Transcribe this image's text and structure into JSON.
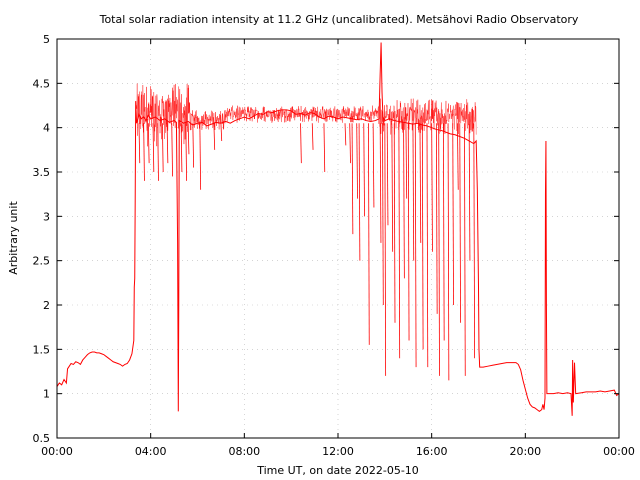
{
  "chart_data": {
    "type": "line",
    "title": "Total solar radiation intensity at 11.2 GHz (uncalibrated). Metsähovi Radio Observatory",
    "xlabel": "Time UT, on date 2022-05-10",
    "ylabel": "Arbitrary unit",
    "xlim": [
      0,
      24
    ],
    "ylim": [
      0.5,
      5
    ],
    "grid": true,
    "x_ticks": [
      0,
      4,
      8,
      12,
      16,
      20,
      24
    ],
    "x_tick_labels": [
      "00:00",
      "04:00",
      "08:00",
      "12:00",
      "16:00",
      "20:00",
      "00:00"
    ],
    "y_ticks": [
      0.5,
      1,
      1.5,
      2,
      2.5,
      3,
      3.5,
      4,
      4.5,
      5
    ],
    "y_tick_labels": [
      "0.5",
      "1",
      "1.5",
      "2",
      "2.5",
      "3",
      "3.5",
      "4",
      "4.5",
      "5"
    ],
    "series": [
      {
        "name": "",
        "color": "#ff0000",
        "points": [
          [
            0.0,
            1.08
          ],
          [
            0.1,
            1.12
          ],
          [
            0.2,
            1.1
          ],
          [
            0.3,
            1.16
          ],
          [
            0.4,
            1.12
          ],
          [
            0.45,
            1.28
          ],
          [
            0.5,
            1.3
          ],
          [
            0.6,
            1.34
          ],
          [
            0.7,
            1.33
          ],
          [
            0.8,
            1.36
          ],
          [
            0.9,
            1.35
          ],
          [
            1.0,
            1.33
          ],
          [
            1.1,
            1.38
          ],
          [
            1.2,
            1.41
          ],
          [
            1.3,
            1.44
          ],
          [
            1.4,
            1.46
          ],
          [
            1.5,
            1.47
          ],
          [
            1.6,
            1.47
          ],
          [
            1.7,
            1.46
          ],
          [
            1.8,
            1.46
          ],
          [
            1.9,
            1.45
          ],
          [
            2.0,
            1.44
          ],
          [
            2.1,
            1.42
          ],
          [
            2.2,
            1.4
          ],
          [
            2.3,
            1.38
          ],
          [
            2.4,
            1.36
          ],
          [
            2.5,
            1.35
          ],
          [
            2.6,
            1.34
          ],
          [
            2.7,
            1.33
          ],
          [
            2.8,
            1.31
          ],
          [
            2.9,
            1.33
          ],
          [
            3.0,
            1.34
          ],
          [
            3.1,
            1.38
          ],
          [
            3.2,
            1.45
          ],
          [
            3.28,
            1.6
          ],
          [
            3.3,
            2.2
          ],
          [
            3.32,
            2.3
          ],
          [
            3.34,
            3.2
          ],
          [
            3.36,
            4.3
          ],
          [
            3.4,
            4.05
          ],
          [
            3.5,
            4.15
          ],
          [
            3.6,
            4.1
          ],
          [
            3.7,
            4.12
          ],
          [
            3.8,
            4.08
          ],
          [
            3.9,
            4.14
          ],
          [
            4.0,
            4.1
          ],
          [
            4.2,
            4.12
          ],
          [
            4.4,
            4.08
          ],
          [
            4.6,
            4.1
          ],
          [
            4.8,
            4.06
          ],
          [
            5.0,
            4.08
          ],
          [
            5.1,
            4.06
          ],
          [
            5.15,
            2.7
          ],
          [
            5.18,
            0.8
          ],
          [
            5.2,
            2.0
          ],
          [
            5.22,
            4.08
          ],
          [
            5.4,
            4.05
          ],
          [
            5.6,
            4.07
          ],
          [
            5.8,
            4.03
          ],
          [
            6.0,
            4.05
          ],
          [
            6.2,
            4.06
          ],
          [
            6.4,
            4.02
          ],
          [
            6.6,
            4.04
          ],
          [
            6.8,
            4.06
          ],
          [
            7.0,
            4.05
          ],
          [
            7.2,
            4.07
          ],
          [
            7.4,
            4.05
          ],
          [
            7.6,
            4.08
          ],
          [
            7.8,
            4.1
          ],
          [
            8.0,
            4.12
          ],
          [
            8.2,
            4.1
          ],
          [
            8.4,
            4.13
          ],
          [
            8.6,
            4.16
          ],
          [
            8.8,
            4.15
          ],
          [
            9.0,
            4.18
          ],
          [
            9.2,
            4.17
          ],
          [
            9.4,
            4.19
          ],
          [
            9.6,
            4.2
          ],
          [
            9.8,
            4.2
          ],
          [
            10.0,
            4.19
          ],
          [
            10.2,
            4.15
          ],
          [
            10.4,
            4.16
          ],
          [
            10.6,
            4.14
          ],
          [
            10.8,
            4.17
          ],
          [
            11.0,
            4.16
          ],
          [
            11.2,
            4.12
          ],
          [
            11.4,
            4.1
          ],
          [
            11.6,
            4.13
          ],
          [
            11.8,
            4.12
          ],
          [
            12.0,
            4.1
          ],
          [
            12.2,
            4.12
          ],
          [
            12.4,
            4.11
          ],
          [
            12.6,
            4.1
          ],
          [
            12.8,
            4.09
          ],
          [
            13.0,
            4.1
          ],
          [
            13.2,
            4.08
          ],
          [
            13.4,
            4.07
          ],
          [
            13.6,
            4.08
          ],
          [
            13.75,
            4.1
          ],
          [
            13.8,
            4.6
          ],
          [
            13.84,
            4.96
          ],
          [
            13.88,
            4.4
          ],
          [
            13.92,
            4.12
          ],
          [
            14.0,
            4.08
          ],
          [
            14.2,
            4.1
          ],
          [
            14.4,
            4.08
          ],
          [
            14.6,
            4.07
          ],
          [
            14.8,
            4.06
          ],
          [
            15.0,
            4.05
          ],
          [
            15.2,
            4.04
          ],
          [
            15.4,
            4.05
          ],
          [
            15.6,
            4.03
          ],
          [
            15.8,
            4.02
          ],
          [
            16.0,
            4.0
          ],
          [
            16.2,
            3.98
          ],
          [
            16.4,
            3.97
          ],
          [
            16.6,
            3.95
          ],
          [
            16.8,
            3.93
          ],
          [
            17.0,
            3.92
          ],
          [
            17.2,
            3.9
          ],
          [
            17.4,
            3.88
          ],
          [
            17.6,
            3.85
          ],
          [
            17.8,
            3.82
          ],
          [
            17.9,
            3.85
          ],
          [
            17.95,
            3.3
          ],
          [
            18.0,
            2.2
          ],
          [
            18.02,
            1.5
          ],
          [
            18.05,
            1.3
          ],
          [
            18.2,
            1.3
          ],
          [
            18.4,
            1.31
          ],
          [
            18.6,
            1.32
          ],
          [
            18.8,
            1.33
          ],
          [
            19.0,
            1.34
          ],
          [
            19.2,
            1.35
          ],
          [
            19.4,
            1.35
          ],
          [
            19.6,
            1.35
          ],
          [
            19.7,
            1.33
          ],
          [
            19.8,
            1.27
          ],
          [
            19.9,
            1.15
          ],
          [
            20.0,
            1.05
          ],
          [
            20.1,
            0.95
          ],
          [
            20.2,
            0.88
          ],
          [
            20.3,
            0.85
          ],
          [
            20.4,
            0.84
          ],
          [
            20.5,
            0.82
          ],
          [
            20.6,
            0.8
          ],
          [
            20.7,
            0.82
          ],
          [
            20.75,
            0.88
          ],
          [
            20.8,
            0.82
          ],
          [
            20.84,
            0.95
          ],
          [
            20.86,
            3.25
          ],
          [
            20.88,
            3.85
          ],
          [
            20.9,
            2.0
          ],
          [
            20.92,
            1.0
          ],
          [
            21.0,
            1.0
          ],
          [
            21.2,
            1.0
          ],
          [
            21.4,
            1.01
          ],
          [
            21.6,
            1.0
          ],
          [
            21.8,
            1.01
          ],
          [
            21.95,
            1.0
          ],
          [
            22.0,
            0.75
          ],
          [
            22.02,
            1.38
          ],
          [
            22.05,
            0.9
          ],
          [
            22.1,
            1.35
          ],
          [
            22.15,
            1.0
          ],
          [
            22.4,
            1.01
          ],
          [
            22.6,
            1.02
          ],
          [
            22.8,
            1.02
          ],
          [
            23.0,
            1.02
          ],
          [
            23.2,
            1.03
          ],
          [
            23.4,
            1.02
          ],
          [
            23.6,
            1.03
          ],
          [
            23.8,
            1.04
          ],
          [
            23.9,
            0.98
          ],
          [
            24.0,
            1.0
          ]
        ],
        "noise_band": {
          "segments": [
            {
              "x_start": 3.4,
              "x_end": 5.7,
              "low": 3.4,
              "high": 4.5
            },
            {
              "x_start": 5.7,
              "x_end": 7.2,
              "low": 3.85,
              "high": 4.2
            },
            {
              "x_start": 7.2,
              "x_end": 13.7,
              "low": 3.95,
              "high": 4.25
            },
            {
              "x_start": 13.7,
              "x_end": 17.9,
              "low": 3.7,
              "high": 4.33
            }
          ]
        },
        "dips": [
          [
            3.5,
            3.6
          ],
          [
            3.7,
            3.4
          ],
          [
            3.9,
            3.6
          ],
          [
            4.1,
            3.5
          ],
          [
            4.3,
            3.4
          ],
          [
            4.5,
            3.5
          ],
          [
            4.7,
            3.6
          ],
          [
            4.9,
            3.45
          ],
          [
            5.3,
            3.5
          ],
          [
            5.5,
            3.4
          ],
          [
            5.6,
            3.7
          ],
          [
            5.8,
            3.55
          ],
          [
            6.1,
            3.3
          ],
          [
            6.7,
            3.75
          ],
          [
            7.0,
            3.85
          ],
          [
            10.4,
            3.6
          ],
          [
            10.9,
            3.75
          ],
          [
            11.4,
            3.5
          ],
          [
            12.3,
            3.8
          ],
          [
            12.5,
            3.6
          ],
          [
            12.6,
            2.8
          ],
          [
            12.8,
            3.2
          ],
          [
            12.9,
            2.5
          ],
          [
            13.1,
            3.0
          ],
          [
            13.3,
            1.55
          ],
          [
            13.5,
            3.1
          ],
          [
            13.8,
            2.7
          ],
          [
            13.9,
            2.0
          ],
          [
            14.0,
            1.2
          ],
          [
            14.1,
            2.9
          ],
          [
            14.3,
            2.6
          ],
          [
            14.4,
            1.8
          ],
          [
            14.6,
            1.4
          ],
          [
            14.8,
            2.3
          ],
          [
            14.9,
            3.2
          ],
          [
            15.0,
            1.6
          ],
          [
            15.2,
            2.5
          ],
          [
            15.3,
            1.3
          ],
          [
            15.5,
            2.7
          ],
          [
            15.6,
            1.5
          ],
          [
            15.8,
            1.3
          ],
          [
            16.0,
            2.6
          ],
          [
            16.2,
            1.9
          ],
          [
            16.3,
            1.2
          ],
          [
            16.5,
            1.6
          ],
          [
            16.7,
            1.15
          ],
          [
            16.9,
            2.0
          ],
          [
            17.1,
            3.3
          ],
          [
            17.2,
            1.8
          ],
          [
            17.4,
            1.2
          ],
          [
            17.6,
            2.5
          ],
          [
            17.8,
            1.4
          ]
        ]
      }
    ]
  }
}
